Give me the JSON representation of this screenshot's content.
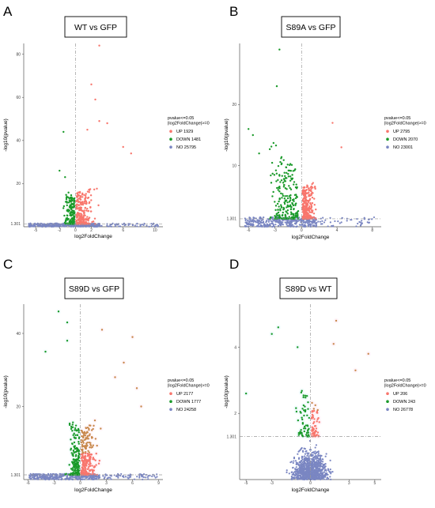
{
  "figure": {
    "colors": {
      "up": "#f8766d",
      "down": "#1a9a2a",
      "no": "#7a86c2",
      "up_dark": "#c88a4e",
      "halo_up": "#ffd6ea",
      "halo_down": "#c9f3f5"
    },
    "legend_title_lines": [
      "pvalue<=0.05",
      "|log2FoldChange|>=0"
    ]
  },
  "chart_data": [
    {
      "type": "scatter",
      "panel": "A",
      "title": "WT vs GFP",
      "xlabel": "log2FoldChange",
      "ylabel": "-log10(pvalue)",
      "xlim": [
        -6.5,
        11
      ],
      "ylim": [
        0,
        85
      ],
      "x_ticks": [
        -5,
        -2,
        0,
        2,
        6,
        10
      ],
      "y_ticks": [
        20,
        40,
        60,
        80
      ],
      "threshold_label": "1.301",
      "threshold_y": 1.301,
      "series": [
        {
          "name": "UP",
          "count_label": "UP 1929",
          "count": 1929
        },
        {
          "name": "DOWN",
          "count_label": "DOWN 1481",
          "count": 1481
        },
        {
          "name": "NO",
          "count_label": "NO 25795",
          "count": 25795
        }
      ],
      "outliers": {
        "up": [
          [
            3,
            84
          ],
          [
            2,
            66
          ],
          [
            2.5,
            59
          ],
          [
            3,
            49
          ],
          [
            4,
            48
          ],
          [
            1.5,
            45
          ],
          [
            6,
            37
          ],
          [
            7,
            34
          ]
        ],
        "down": [
          [
            -1.5,
            44
          ],
          [
            -2,
            26
          ],
          [
            -1.3,
            23
          ]
        ]
      }
    },
    {
      "type": "scatter",
      "panel": "B",
      "title": "S89A vs GFP",
      "xlabel": "log2FoldChange",
      "ylabel": "-log10(pvalue)",
      "xlim": [
        -7,
        9
      ],
      "ylim": [
        0,
        30
      ],
      "x_ticks": [
        -6,
        -3,
        0,
        4,
        8
      ],
      "y_ticks": [
        10,
        20
      ],
      "threshold_label": "1.301",
      "threshold_y": 1.301,
      "series": [
        {
          "name": "UP",
          "count_label": "UP 2795",
          "count": 2795
        },
        {
          "name": "DOWN",
          "count_label": "DOWN 2070",
          "count": 2070
        },
        {
          "name": "NO",
          "count_label": "NO 23001",
          "count": 23001
        }
      ],
      "outliers": {
        "up": [
          [
            3.5,
            17
          ],
          [
            4.5,
            13
          ]
        ],
        "down": [
          [
            -2.5,
            29
          ],
          [
            -2.8,
            23
          ],
          [
            -6,
            16
          ],
          [
            -5.5,
            15
          ],
          [
            -4.8,
            12
          ]
        ]
      }
    },
    {
      "type": "scatter",
      "panel": "C",
      "title": "S89D vs GFP",
      "xlabel": "log2FoldChange",
      "ylabel": "-log10(pvalue)",
      "xlim": [
        -6.5,
        9.5
      ],
      "ylim": [
        0,
        48
      ],
      "x_ticks": [
        -6,
        -3,
        0,
        3,
        6,
        9
      ],
      "y_ticks": [
        20,
        40
      ],
      "threshold_label": "1.301",
      "threshold_y": 1.301,
      "series": [
        {
          "name": "UP",
          "count_label": "UP 2177",
          "count": 2177
        },
        {
          "name": "DOWN",
          "count_label": "DOWN 1777",
          "count": 1777
        },
        {
          "name": "NO",
          "count_label": "NO 24258",
          "count": 24258
        }
      ],
      "outliers": {
        "up": [
          [
            2.5,
            41
          ],
          [
            6,
            39
          ],
          [
            5,
            32
          ],
          [
            4,
            28
          ],
          [
            6.5,
            25
          ],
          [
            7,
            20
          ]
        ],
        "down": [
          [
            -2.5,
            46
          ],
          [
            -1.5,
            43
          ],
          [
            -1.5,
            38
          ],
          [
            -4,
            35
          ]
        ]
      }
    },
    {
      "type": "scatter",
      "panel": "D",
      "title": "S89D vs WT",
      "xlabel": "log2FoldChange",
      "ylabel": "-log10(pvalue)",
      "xlim": [
        -5.5,
        5.5
      ],
      "ylim": [
        0,
        5.3
      ],
      "x_ticks": [
        -5,
        -3,
        0,
        3,
        5
      ],
      "y_ticks": [
        2,
        4
      ],
      "threshold_label": "1.301",
      "threshold_y": 1.301,
      "series": [
        {
          "name": "UP",
          "count_label": "UP 206",
          "count": 206
        },
        {
          "name": "DOWN",
          "count_label": "DOWN 243",
          "count": 243
        },
        {
          "name": "NO",
          "count_label": "NO 26778",
          "count": 26778
        }
      ],
      "outliers": {
        "up": [
          [
            2,
            4.8
          ],
          [
            1.8,
            4.1
          ],
          [
            4.5,
            3.8
          ],
          [
            3.5,
            3.3
          ]
        ],
        "down": [
          [
            -2.5,
            4.6
          ],
          [
            -3,
            4.4
          ],
          [
            -1,
            4.0
          ],
          [
            -5,
            2.6
          ]
        ]
      }
    }
  ]
}
